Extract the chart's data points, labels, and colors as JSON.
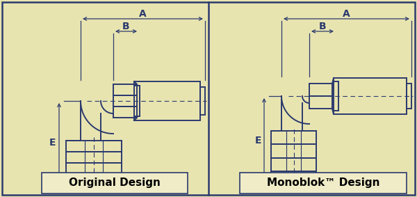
{
  "bg_color": "#e8e4b0",
  "border_color": "#2b3a6e",
  "label_left": "Original Design",
  "label_right": "Monoblok™ Design",
  "label_fontsize": 11,
  "dim_color": "#2b3a6e",
  "fitting_color": "#2b3a6e",
  "dim_A_label": "A",
  "dim_B_label": "B",
  "dim_E_label": "E",
  "title_box_color": "#f0ecc8",
  "title_border_color": "#2b3a6e",
  "lw_fit": 1.4,
  "lw_dim": 0.9
}
